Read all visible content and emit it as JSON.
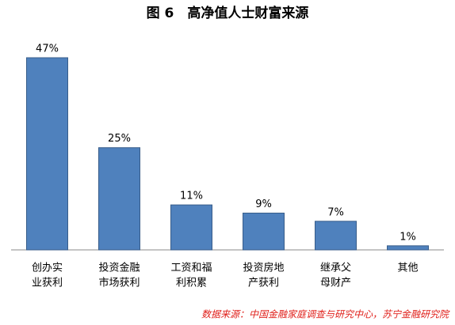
{
  "chart_data": {
    "type": "bar",
    "title": "图 6　高净值人士财富来源",
    "categories": [
      [
        "创办实",
        "业获利"
      ],
      [
        "投资金融",
        "市场获利"
      ],
      [
        "工资和福",
        "利积累"
      ],
      [
        "投资房地",
        "产获利"
      ],
      [
        "继承父",
        "母财产"
      ],
      [
        "其他"
      ]
    ],
    "values": [
      47,
      25,
      11,
      9,
      7,
      1
    ],
    "value_labels": [
      "47%",
      "25%",
      "11%",
      "9%",
      "7%",
      "1%"
    ],
    "color": "#4f81bd",
    "source": "数据来源：中国金融家庭调查与研究中心，苏宁金融研究院"
  }
}
